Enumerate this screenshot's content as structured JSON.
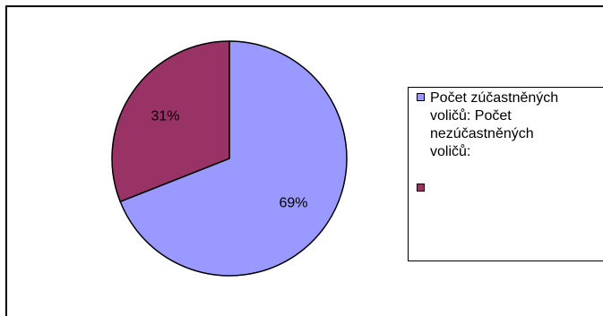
{
  "chart_data": {
    "type": "pie",
    "slices": [
      {
        "label": "69%",
        "value": 69,
        "color": "#9999FF"
      },
      {
        "label": "31%",
        "value": 31,
        "color": "#993366"
      }
    ],
    "legend": {
      "text": "Počet zúčastněných\nvoličů: Počet\nnezúčastněných\nvoličů:",
      "placement": "right"
    },
    "start_angle_deg": 0,
    "direction": "clockwise"
  }
}
